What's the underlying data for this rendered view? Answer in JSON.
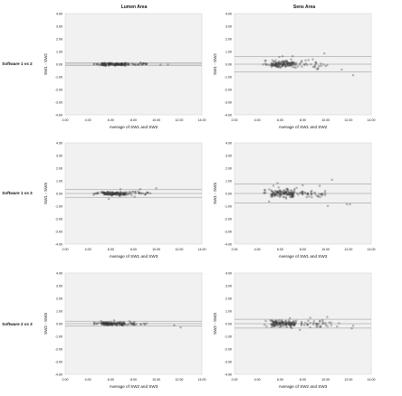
{
  "figure": {
    "columns": [
      "Lumen Area",
      "Sens Area"
    ],
    "rows": [
      "Software 1 vs 2",
      "Software 1 vs 3",
      "Software 2 vs 3"
    ]
  },
  "chart_data": [
    {
      "type": "scatter",
      "row": 0,
      "col": 0,
      "title": "Lumen Area",
      "row_label": "Software 1 vs 2",
      "xlabel": "Average of SW1 and SW2",
      "ylabel": "SW1 - SW2",
      "xlim": [
        2.0,
        14.0
      ],
      "ylim": [
        -4.0,
        4.0
      ],
      "xticks": [
        "2.00",
        "4.00",
        "6.00",
        "8.00",
        "10.00",
        "12.00",
        "14.00"
      ],
      "yticks": [
        "4.00",
        "3.00",
        "2.00",
        "1.00",
        "0.00",
        "-1.00",
        "-2.00",
        "-3.00",
        "-4.00"
      ],
      "mean_diff": 0.0,
      "limits": [
        0.1,
        -0.1
      ],
      "cluster": {
        "x_range": [
          4.5,
          9.2
        ],
        "y_spread": 0.06,
        "outliers": 5,
        "n": 160
      }
    },
    {
      "type": "scatter",
      "row": 0,
      "col": 1,
      "title": "Sens Area",
      "row_label": "Software 1 vs 2",
      "xlabel": "Average of SW1 and SW2",
      "ylabel": "SW1 - SW2",
      "xlim": [
        2.0,
        14.0
      ],
      "ylim": [
        -4.0,
        4.0
      ],
      "xticks": [
        "2.00",
        "4.00",
        "6.00",
        "8.00",
        "10.00",
        "12.00",
        "14.00"
      ],
      "yticks": [
        "4.00",
        "3.00",
        "2.00",
        "1.00",
        "0.00",
        "-1.00",
        "-2.00",
        "-3.00",
        "-4.00"
      ],
      "mean_diff": 0.0,
      "limits": [
        0.6,
        -0.6
      ],
      "cluster": {
        "x_range": [
          4.5,
          10.0
        ],
        "y_spread": 0.18,
        "outliers": 12,
        "n": 160
      }
    },
    {
      "type": "scatter",
      "row": 1,
      "col": 0,
      "title": "",
      "row_label": "Software 1 vs 3",
      "xlabel": "Average of SW1 and SW3",
      "ylabel": "SW1 - SW3",
      "xlim": [
        2.0,
        14.0
      ],
      "ylim": [
        -4.0,
        4.0
      ],
      "xticks": [
        "2.00",
        "4.00",
        "6.00",
        "8.00",
        "10.00",
        "12.00",
        "14.00"
      ],
      "yticks": [
        "4.00",
        "3.00",
        "2.00",
        "1.00",
        "0.00",
        "-1.00",
        "-2.00",
        "-3.00",
        "-4.00"
      ],
      "mean_diff": 0.0,
      "limits": [
        0.3,
        -0.3
      ],
      "cluster": {
        "x_range": [
          4.5,
          9.5
        ],
        "y_spread": 0.09,
        "outliers": 7,
        "n": 160
      }
    },
    {
      "type": "scatter",
      "row": 1,
      "col": 1,
      "title": "",
      "row_label": "Software 1 vs 3",
      "xlabel": "Average of SW1 and SW3",
      "ylabel": "SW1 - SW3",
      "xlim": [
        2.0,
        14.0
      ],
      "ylim": [
        -4.0,
        4.0
      ],
      "xticks": [
        "2.00",
        "4.00",
        "6.00",
        "8.00",
        "10.00",
        "12.00",
        "14.00"
      ],
      "yticks": [
        "4.00",
        "3.00",
        "2.00",
        "1.00",
        "0.00",
        "-1.00",
        "-2.00",
        "-3.00",
        "-4.00"
      ],
      "mean_diff": 0.0,
      "limits": [
        0.75,
        -0.75
      ],
      "cluster": {
        "x_range": [
          4.5,
          10.0
        ],
        "y_spread": 0.2,
        "outliers": 14,
        "n": 170
      }
    },
    {
      "type": "scatter",
      "row": 2,
      "col": 0,
      "title": "",
      "row_label": "Software 2 vs 3",
      "xlabel": "Average of SW2 and SW3",
      "ylabel": "SW2 - SW3",
      "xlim": [
        2.0,
        14.0
      ],
      "ylim": [
        -4.0,
        4.0
      ],
      "xticks": [
        "2.00",
        "4.00",
        "6.00",
        "8.00",
        "10.00",
        "12.00",
        "14.00"
      ],
      "yticks": [
        "4.00",
        "3.00",
        "2.00",
        "1.00",
        "0.00",
        "-1.00",
        "-2.00",
        "-3.00",
        "-4.00"
      ],
      "mean_diff": 0.0,
      "limits": [
        0.2,
        -0.2
      ],
      "cluster": {
        "x_range": [
          4.5,
          9.2
        ],
        "y_spread": 0.07,
        "outliers": 6,
        "n": 160
      }
    },
    {
      "type": "scatter",
      "row": 2,
      "col": 1,
      "title": "",
      "row_label": "Software 2 vs 3",
      "xlabel": "Average of SW2 and SW3",
      "ylabel": "SW2 - SW3",
      "xlim": [
        2.0,
        14.0
      ],
      "ylim": [
        -4.0,
        4.0
      ],
      "xticks": [
        "2.00",
        "4.00",
        "6.00",
        "8.00",
        "10.00",
        "12.00",
        "14.00"
      ],
      "yticks": [
        "4.00",
        "3.00",
        "2.00",
        "1.00",
        "0.00",
        "-1.00",
        "-2.00",
        "-3.00",
        "-4.00"
      ],
      "mean_diff": 0.0,
      "limits": [
        0.35,
        -0.35
      ],
      "cluster": {
        "x_range": [
          4.5,
          10.5
        ],
        "y_spread": 0.16,
        "outliers": 12,
        "n": 170
      }
    }
  ]
}
